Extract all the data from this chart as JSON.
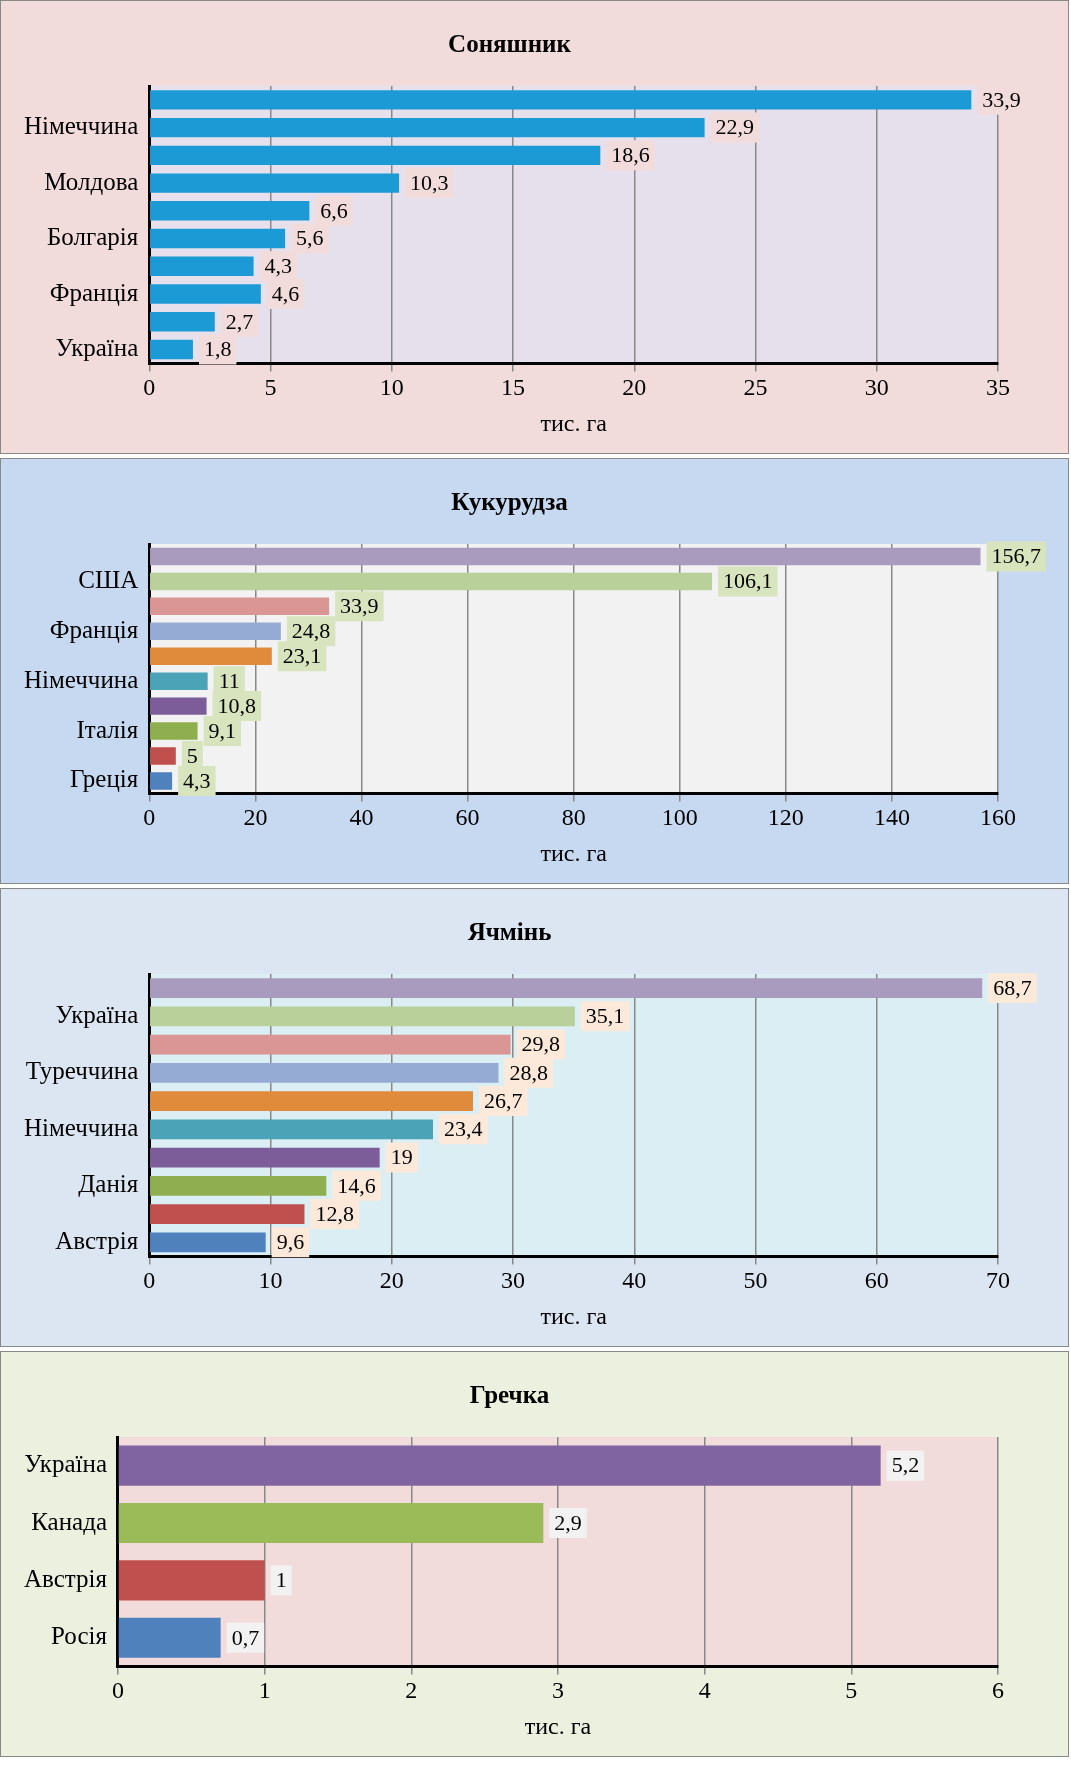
{
  "chart_data": [
    {
      "type": "bar",
      "orientation": "horizontal",
      "title": "Соняшник",
      "xlabel": "тис. га",
      "categories": [
        null,
        "Німеччина",
        null,
        "Молдова",
        null,
        "Болгарія",
        null,
        "Франція",
        null,
        "Україна"
      ],
      "values": [
        33.9,
        22.9,
        18.6,
        10.3,
        6.6,
        5.6,
        4.3,
        4.6,
        2.7,
        1.8
      ],
      "color": "#1c9ad6",
      "xlim": [
        0,
        35
      ],
      "xticks": [
        0,
        5,
        10,
        15,
        20,
        25,
        30,
        35
      ],
      "grid": "x",
      "legend": false,
      "value_labels": [
        "33,9",
        "22,9",
        "18,6",
        "10,3",
        "6,6",
        "5,6",
        "4,3",
        "4,6",
        "2,7",
        "1,8"
      ]
    },
    {
      "type": "bar",
      "orientation": "horizontal",
      "title": "Кукурудза",
      "xlabel": "тис. га",
      "categories": [
        null,
        "США",
        null,
        "Франція",
        null,
        "Німеччина",
        null,
        "Італія",
        null,
        "Греція"
      ],
      "values": [
        156.7,
        106.1,
        33.9,
        24.8,
        23.1,
        11,
        10.8,
        9.1,
        5,
        4.3
      ],
      "colors": [
        "#a99bbd",
        "#b9d09a",
        "#d99694",
        "#95abd3",
        "#e08b3c",
        "#4aa3b6",
        "#7c5c99",
        "#8fae4f",
        "#c0504d",
        "#4f81bd"
      ],
      "xlim": [
        0,
        160
      ],
      "xticks": [
        0,
        20,
        40,
        60,
        80,
        100,
        120,
        140,
        160
      ],
      "grid": "x",
      "legend": false,
      "value_labels": [
        "156,7",
        "106,1",
        "33,9",
        "24,8",
        "23,1",
        "11",
        "10,8",
        "9,1",
        "5",
        "4,3"
      ]
    },
    {
      "type": "bar",
      "orientation": "horizontal",
      "title": "Ячмінь",
      "xlabel": "тис. га",
      "categories": [
        null,
        "Україна",
        null,
        "Туреччина",
        null,
        "Німеччина",
        null,
        "Данія",
        null,
        "Австрія"
      ],
      "values": [
        68.7,
        35.1,
        29.8,
        28.8,
        26.7,
        23.4,
        19,
        14.6,
        12.8,
        9.6
      ],
      "colors": [
        "#a99bbd",
        "#b9d09a",
        "#d99694",
        "#95abd3",
        "#e08b3c",
        "#4aa3b6",
        "#7c5c99",
        "#8fae4f",
        "#c0504d",
        "#4f81bd"
      ],
      "xlim": [
        0,
        70
      ],
      "xticks": [
        0,
        10,
        20,
        30,
        40,
        50,
        60,
        70
      ],
      "grid": "x",
      "legend": false,
      "value_labels": [
        "68,7",
        "35,1",
        "29,8",
        "28,8",
        "26,7",
        "23,4",
        "19",
        "14,6",
        "12,8",
        "9,6"
      ]
    },
    {
      "type": "bar",
      "orientation": "horizontal",
      "title": "Гречка",
      "xlabel": "тис. га",
      "categories": [
        "Україна",
        "Канада",
        "Австрія",
        "Росія"
      ],
      "values": [
        5.2,
        2.9,
        1,
        0.7
      ],
      "colors": [
        "#8064a2",
        "#9bbb59",
        "#c0504d",
        "#4f81bd"
      ],
      "xlim": [
        0,
        6
      ],
      "xticks": [
        0,
        1,
        2,
        3,
        4,
        5,
        6
      ],
      "grid": "x",
      "legend": false,
      "value_labels": [
        "5,2",
        "2,9",
        "1",
        "0,7"
      ]
    }
  ]
}
